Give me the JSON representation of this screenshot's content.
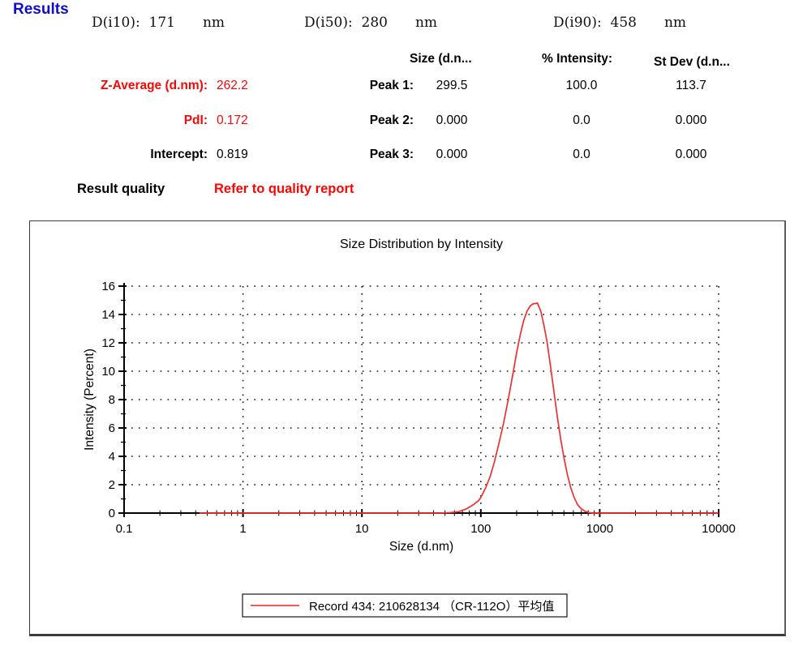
{
  "page": {
    "title": "Results"
  },
  "summary": {
    "d_values": [
      {
        "label": "D(i10):",
        "value": "171",
        "unit": "nm"
      },
      {
        "label": "D(i50):",
        "value": "280",
        "unit": "nm"
      },
      {
        "label": "D(i90):",
        "value": "458",
        "unit": "nm"
      }
    ],
    "left_stats": [
      {
        "label": "Z-Average (d.nm):",
        "value": "262.2",
        "color": "red"
      },
      {
        "label": "PdI:",
        "value": "0.172",
        "color": "red"
      },
      {
        "label": "Intercept:",
        "value": "0.819",
        "color": "black"
      }
    ],
    "peak_table": {
      "columns": [
        "Size (d.n...",
        "% Intensity:",
        "St Dev (d.n..."
      ],
      "rows": [
        {
          "label": "Peak 1:",
          "size": "299.5",
          "intensity": "100.0",
          "stdev": "113.7"
        },
        {
          "label": "Peak 2:",
          "size": "0.000",
          "intensity": "0.0",
          "stdev": "0.000"
        },
        {
          "label": "Peak 3:",
          "size": "0.000",
          "intensity": "0.0",
          "stdev": "0.000"
        }
      ]
    },
    "result_quality_label": "Result quality",
    "result_quality_value": "Refer to quality report"
  },
  "chart_data": {
    "type": "line",
    "title": "Size Distribution by Intensity",
    "xlabel": "Size (d.nm)",
    "ylabel": "Intensity (Percent)",
    "x_scale": "log",
    "xlim": [
      0.1,
      10000
    ],
    "ylim": [
      0,
      16
    ],
    "x_ticks": [
      "0.1",
      "1",
      "10",
      "100",
      "1000",
      "10000"
    ],
    "y_ticks": [
      0,
      2,
      4,
      6,
      8,
      10,
      12,
      14,
      16
    ],
    "grid": "dotted",
    "legend": {
      "label": "Record 434: 210628134 （CR-112O）平均值",
      "line_color": "#f02020",
      "position": "bottom"
    },
    "series": [
      {
        "name": "Record 434: 210628134 （CR-112O）平均值",
        "color": "#ef3030",
        "points": [
          [
            0.43,
            0
          ],
          [
            1,
            0
          ],
          [
            5,
            0
          ],
          [
            10,
            0
          ],
          [
            30,
            0
          ],
          [
            45,
            0
          ],
          [
            55,
            0.03
          ],
          [
            65,
            0.1
          ],
          [
            75,
            0.28
          ],
          [
            85,
            0.55
          ],
          [
            95,
            0.85
          ],
          [
            100,
            1.1
          ],
          [
            110,
            1.8
          ],
          [
            120,
            2.6
          ],
          [
            130,
            3.6
          ],
          [
            140,
            4.7
          ],
          [
            155,
            6.3
          ],
          [
            170,
            8.0
          ],
          [
            185,
            9.7
          ],
          [
            200,
            11.3
          ],
          [
            215,
            12.6
          ],
          [
            230,
            13.6
          ],
          [
            245,
            14.25
          ],
          [
            260,
            14.6
          ],
          [
            275,
            14.75
          ],
          [
            300,
            14.8
          ],
          [
            320,
            14.2
          ],
          [
            340,
            13.2
          ],
          [
            360,
            12.1
          ],
          [
            385,
            10.4
          ],
          [
            410,
            8.7
          ],
          [
            440,
            6.8
          ],
          [
            470,
            5.2
          ],
          [
            500,
            3.9
          ],
          [
            535,
            2.7
          ],
          [
            570,
            1.8
          ],
          [
            610,
            1.1
          ],
          [
            650,
            0.6
          ],
          [
            700,
            0.3
          ],
          [
            750,
            0.13
          ],
          [
            800,
            0.05
          ],
          [
            860,
            0
          ],
          [
            1000,
            0
          ],
          [
            3000,
            0
          ],
          [
            10000,
            0
          ]
        ]
      }
    ]
  }
}
